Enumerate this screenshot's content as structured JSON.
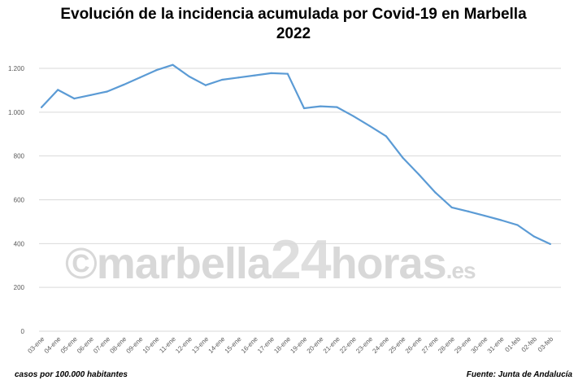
{
  "title_line1": "Evolución de la incidencia acumulada por Covid-19 en Marbella",
  "title_line2": "2022",
  "footer_left": "casos por 100.000 habitantes",
  "footer_right": "Fuente: Junta de Andalucía",
  "watermark": {
    "copyright": "©",
    "brand": "marbella",
    "number": "24",
    "suffix": "horas",
    "tld": ".es"
  },
  "colors": {
    "line": "#5b9bd5",
    "grid": "#d9d9d9",
    "axis_text": "#595959"
  },
  "chart_data": {
    "type": "line",
    "title": "Evolución de la incidencia acumulada por Covid-19 en Marbella 2022",
    "ylabel": "casos por 100.000 habitantes",
    "ylim": [
      0,
      1200
    ],
    "yticks": [
      0,
      200,
      400,
      600,
      800,
      1000,
      1200
    ],
    "ytick_labels": [
      "0",
      "200",
      "400",
      "600",
      "800",
      "1.000",
      "1.200"
    ],
    "grid": true,
    "categories": [
      "03-ene",
      "04-ene",
      "05-ene",
      "06-ene",
      "07-ene",
      "08-ene",
      "09-ene",
      "10-ene",
      "11-ene",
      "12-ene",
      "13-ene",
      "14-ene",
      "15-ene",
      "16-ene",
      "17-ene",
      "18-ene",
      "19-ene",
      "20-ene",
      "21-ene",
      "22-ene",
      "23-ene",
      "24-ene",
      "25-ene",
      "26-ene",
      "27-ene",
      "28-ene",
      "29-ene",
      "30-ene",
      "31-ene",
      "01-feb",
      "02-feb",
      "03-feb"
    ],
    "values": [
      1022,
      1102,
      1062,
      1078,
      1094,
      1125,
      1158,
      1192,
      1216,
      1163,
      1123,
      1148,
      1158,
      1168,
      1178,
      1175,
      1018,
      1027,
      1023,
      982,
      937,
      890,
      793,
      715,
      633,
      565,
      547,
      527,
      507,
      485,
      433,
      398
    ]
  }
}
